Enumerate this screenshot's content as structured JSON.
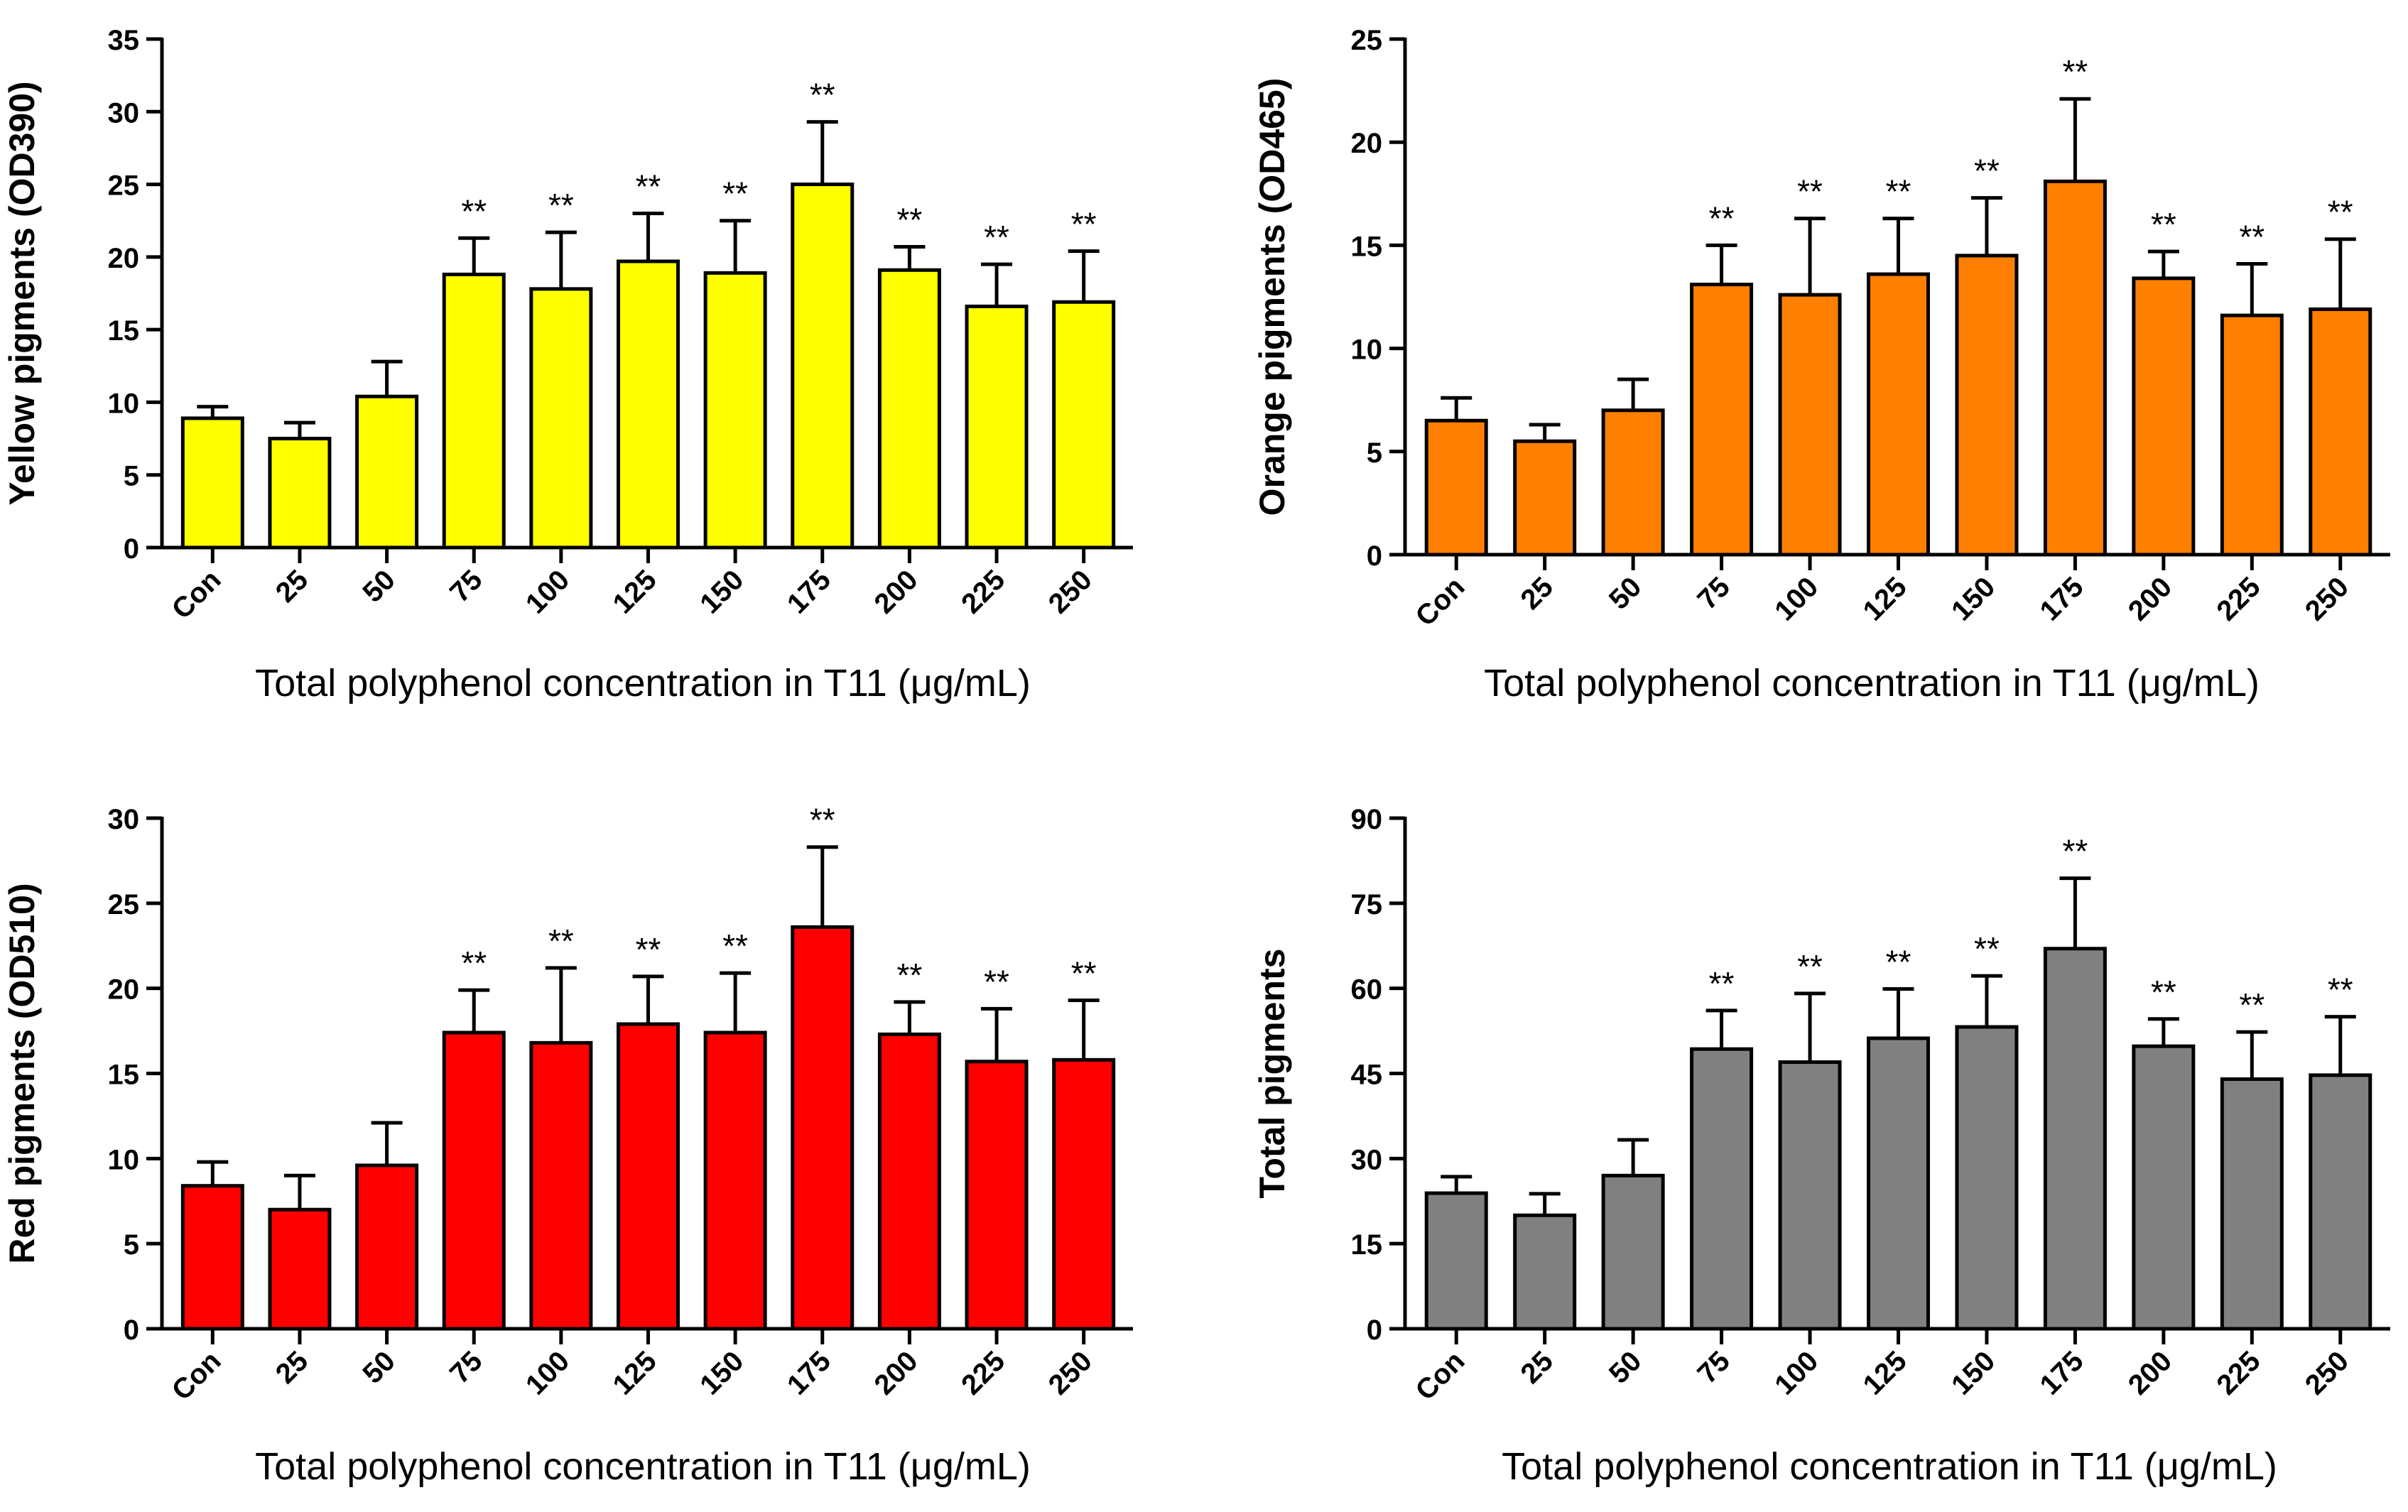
{
  "chart_data": [
    {
      "type": "bar",
      "categories": [
        "Con",
        "25",
        "50",
        "75",
        "100",
        "125",
        "150",
        "175",
        "200",
        "225",
        "250"
      ],
      "values": [
        8.9,
        7.5,
        10.4,
        18.8,
        17.8,
        19.7,
        18.9,
        25.0,
        19.1,
        16.6,
        16.9
      ],
      "errors": [
        0.8,
        1.1,
        2.4,
        2.5,
        3.9,
        3.3,
        3.6,
        4.3,
        1.6,
        2.9,
        3.5
      ],
      "significance": [
        "",
        "",
        "",
        "**",
        "**",
        "**",
        "**",
        "**",
        "**",
        "**",
        "**"
      ],
      "title": "",
      "xlabel": "Total polyphenol concentration in T11 (μg/mL)",
      "ylabel": "Yellow pigments (OD390)",
      "ylim": [
        0,
        35
      ],
      "yticks": [
        0,
        5,
        10,
        15,
        20,
        25,
        30,
        35
      ],
      "color": "#ffff00"
    },
    {
      "type": "bar",
      "categories": [
        "Con",
        "25",
        "50",
        "75",
        "100",
        "125",
        "150",
        "175",
        "200",
        "225",
        "250"
      ],
      "values": [
        6.5,
        5.5,
        7.0,
        13.1,
        12.6,
        13.6,
        14.5,
        18.1,
        13.4,
        11.6,
        11.9
      ],
      "errors": [
        1.1,
        0.8,
        1.5,
        1.9,
        3.7,
        2.7,
        2.8,
        4.0,
        1.3,
        2.5,
        3.4
      ],
      "significance": [
        "",
        "",
        "",
        "**",
        "**",
        "**",
        "**",
        "**",
        "**",
        "**",
        "**"
      ],
      "title": "",
      "xlabel": "Total polyphenol concentration in T11 (μg/mL)",
      "ylabel": "Orange pigments (OD465)",
      "ylim": [
        0,
        25
      ],
      "yticks": [
        0,
        5,
        10,
        15,
        20,
        25
      ],
      "color": "#ff8000"
    },
    {
      "type": "bar",
      "categories": [
        "Con",
        "25",
        "50",
        "75",
        "100",
        "125",
        "150",
        "175",
        "200",
        "225",
        "250"
      ],
      "values": [
        8.4,
        7.0,
        9.6,
        17.4,
        16.8,
        17.9,
        17.4,
        23.6,
        17.3,
        15.7,
        15.8
      ],
      "errors": [
        1.4,
        2.0,
        2.5,
        2.5,
        4.4,
        2.8,
        3.5,
        4.7,
        1.9,
        3.1,
        3.5
      ],
      "significance": [
        "",
        "",
        "",
        "**",
        "**",
        "**",
        "**",
        "**",
        "**",
        "**",
        "**"
      ],
      "title": "",
      "xlabel": "Total polyphenol concentration in T11 (μg/mL)",
      "ylabel": "Red pigments (OD510)",
      "ylim": [
        0,
        30
      ],
      "yticks": [
        0,
        5,
        10,
        15,
        20,
        25,
        30
      ],
      "color": "#ff0000"
    },
    {
      "type": "bar",
      "categories": [
        "Con",
        "25",
        "50",
        "75",
        "100",
        "125",
        "150",
        "175",
        "200",
        "225",
        "250"
      ],
      "values": [
        23.9,
        20.0,
        27.0,
        49.3,
        47.0,
        51.2,
        53.2,
        67.0,
        49.8,
        44.0,
        44.7
      ],
      "errors": [
        2.9,
        3.8,
        6.3,
        6.8,
        12.1,
        8.7,
        9.0,
        12.4,
        4.8,
        8.3,
        10.3
      ],
      "significance": [
        "",
        "",
        "",
        "**",
        "**",
        "**",
        "**",
        "**",
        "**",
        "**",
        "**"
      ],
      "title": "",
      "xlabel": "Total polyphenol concentration in T11 (μg/mL)",
      "ylabel": "Total pigments",
      "ylim": [
        0,
        90
      ],
      "yticks": [
        0,
        15,
        30,
        45,
        60,
        75,
        90
      ],
      "color": "#808080"
    }
  ]
}
